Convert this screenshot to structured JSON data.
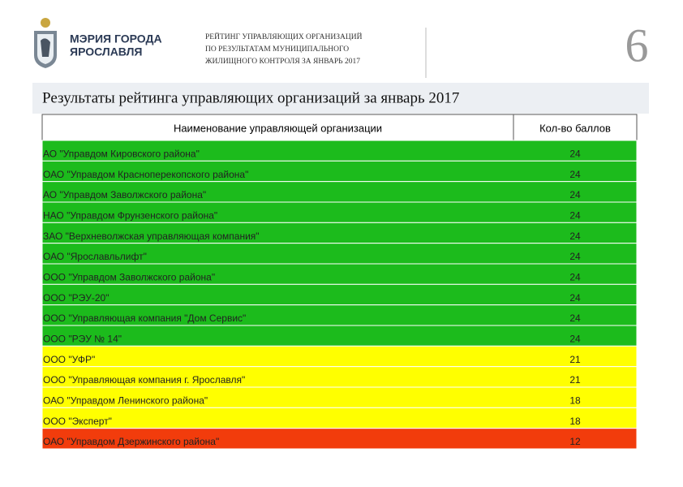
{
  "header": {
    "logo_lines": [
      "МЭРИЯ ГОРОДА",
      "ЯРОСЛАВЛЯ"
    ],
    "subtitle_lines": [
      "РЕЙТИНГ УПРАВЛЯЮЩИХ ОРГАНИЗАЦИЙ",
      "ПО РЕЗУЛЬТАТАМ МУНИЦИПАЛЬНОГО",
      "ЖИЛИЩНОГО КОНТРОЛЯ ЗА ЯНВАРЬ 2017"
    ],
    "page_number": "6"
  },
  "title": "Результаты рейтинга управляющих организаций за январь 2017",
  "table": {
    "columns": [
      "Наименование управляющей организации",
      "Кол-во баллов"
    ],
    "rows": [
      {
        "cells": [
          "АО \"Управдом Кировского района\"",
          24
        ],
        "color": "#1cbb1c"
      },
      {
        "cells": [
          "ОАО \"Управдом Красноперекопского района\"",
          24
        ],
        "color": "#1cbb1c"
      },
      {
        "cells": [
          "АО \"Управдом Заволжского района\"",
          24
        ],
        "color": "#1cbb1c"
      },
      {
        "cells": [
          "НАО \"Управдом Фрунзенского района\"",
          24
        ],
        "color": "#1cbb1c"
      },
      {
        "cells": [
          "ЗАО \"Верхневолжская управляющая компания\"",
          24
        ],
        "color": "#1cbb1c"
      },
      {
        "cells": [
          "ОАО \"Ярославльлифт\"",
          24
        ],
        "color": "#1cbb1c"
      },
      {
        "cells": [
          "ООО \"Управдом Заволжского района\"",
          24
        ],
        "color": "#1cbb1c"
      },
      {
        "cells": [
          "ООО \"РЭУ-20\"",
          24
        ],
        "color": "#1cbb1c"
      },
      {
        "cells": [
          "ООО \"Управляющая компания \"Дом Сервис\"",
          24
        ],
        "color": "#1cbb1c"
      },
      {
        "cells": [
          "ООО \"РЭУ № 14\"",
          24
        ],
        "color": "#1cbb1c"
      },
      {
        "cells": [
          "ООО \"УФР\"",
          21
        ],
        "color": "#ffff00"
      },
      {
        "cells": [
          "ООО \"Управляющая компания г. Ярославля\"",
          21
        ],
        "color": "#ffff00"
      },
      {
        "cells": [
          "ОАО \"Управдом Ленинского района\"",
          18
        ],
        "color": "#ffff00"
      },
      {
        "cells": [
          "ООО \"Эксперт\"",
          18
        ],
        "color": "#ffff00"
      },
      {
        "cells": [
          "ОАО \"Управдом Дзержинского района\"",
          12
        ],
        "color": "#f23c0c"
      }
    ]
  }
}
